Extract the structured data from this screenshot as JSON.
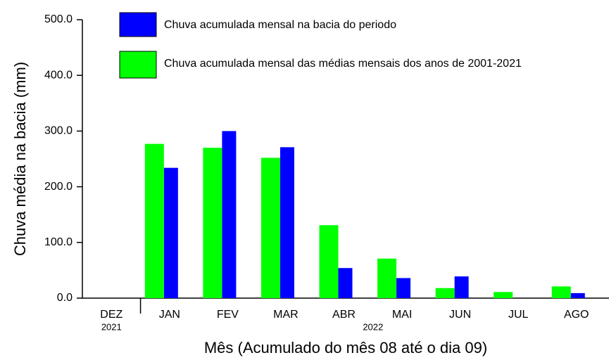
{
  "chart_data": {
    "type": "bar",
    "y_label": "Chuva média na bacia (mm)",
    "x_label": "Mês (Acumulado do mês 08 até o dia 09)",
    "categories": [
      "DEZ",
      "JAN",
      "FEV",
      "MAR",
      "ABR",
      "MAI",
      "JUN",
      "JUL",
      "AGO"
    ],
    "x_groups": [
      {
        "label": "2021",
        "span": 1
      },
      {
        "label": "2022",
        "span": 8
      }
    ],
    "series": [
      {
        "name": "Chuva acumulada mensal na bacia do periodo",
        "color": "#0000ff",
        "values": [
          null,
          234,
          300,
          271,
          54,
          36,
          39,
          null,
          9
        ]
      },
      {
        "name": "Chuva acumulada mensal das médias mensais dos anos de 2001-2021",
        "color": "#00ff00",
        "values": [
          null,
          277,
          270,
          252,
          131,
          71,
          18,
          11,
          21
        ]
      }
    ],
    "ylim": [
      0,
      500
    ],
    "yticks": [
      {
        "value": 0,
        "label": "0.0"
      },
      {
        "value": 100,
        "label": "100.0"
      },
      {
        "value": 200,
        "label": "200.0"
      },
      {
        "value": 300,
        "label": "300.0"
      },
      {
        "value": 400,
        "label": "400.0"
      },
      {
        "value": 500,
        "label": "500.0"
      }
    ],
    "grid": false
  }
}
